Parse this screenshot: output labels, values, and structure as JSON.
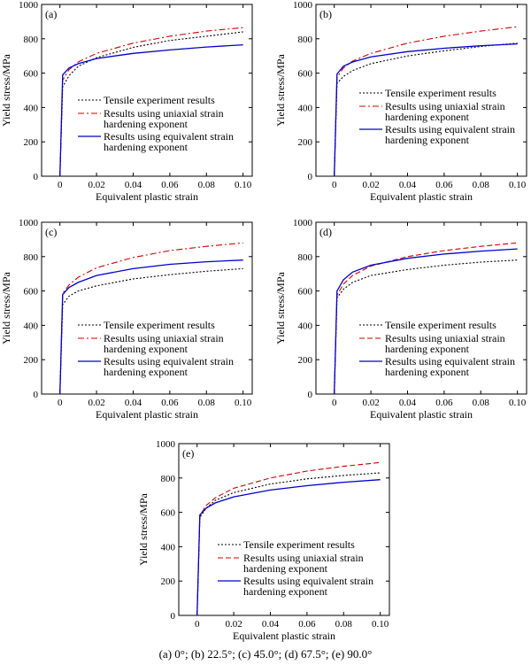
{
  "chart_data": [
    {
      "type": "line",
      "panel_label": "(a)",
      "xlabel": "Equivalent plastic strain",
      "ylabel": "Yield stress/MPa",
      "xlim": [
        -0.01,
        0.105
      ],
      "ylim": [
        0,
        1000
      ],
      "xticks": [
        "0",
        "0.02",
        "0.04",
        "0.06",
        "0.08",
        "0.10"
      ],
      "xtick_values": [
        0,
        0.02,
        0.04,
        0.06,
        0.08,
        0.1
      ],
      "yticks": [
        "0",
        "200",
        "400",
        "600",
        "800",
        "1000"
      ],
      "yticks_values": [
        0,
        200,
        400,
        600,
        800,
        1000
      ],
      "legend_position": "center",
      "series": [
        {
          "name": "Tensile experiment results",
          "color": "#000000",
          "dash": "dotted",
          "x": [
            0,
            0.0015,
            0.005,
            0.01,
            0.02,
            0.04,
            0.06,
            0.08,
            0.1
          ],
          "y": [
            0,
            520,
            585,
            640,
            690,
            750,
            790,
            815,
            840
          ]
        },
        {
          "name": "Results using uniaxial strain hardening exponent",
          "color": "#cc0000",
          "dash": "dashdot",
          "x": [
            0,
            0.0015,
            0.005,
            0.01,
            0.02,
            0.04,
            0.06,
            0.08,
            0.1
          ],
          "y": [
            0,
            560,
            620,
            665,
            715,
            775,
            815,
            845,
            865
          ]
        },
        {
          "name": "Results using equivalent strain hardening exponent",
          "color": "#0000cc",
          "dash": "solid",
          "x": [
            0,
            0.0015,
            0.005,
            0.01,
            0.02,
            0.04,
            0.06,
            0.08,
            0.1
          ],
          "y": [
            0,
            590,
            630,
            655,
            685,
            715,
            735,
            752,
            765
          ]
        }
      ]
    },
    {
      "type": "line",
      "panel_label": "(b)",
      "xlabel": "Equivalent plastic strain",
      "ylabel": "Yield stress/MPa",
      "xlim": [
        -0.01,
        0.105
      ],
      "ylim": [
        0,
        1000
      ],
      "xticks": [
        "0",
        "0.02",
        "0.04",
        "0.06",
        "0.08",
        "0.10"
      ],
      "xtick_values": [
        0,
        0.02,
        0.04,
        0.06,
        0.08,
        0.1
      ],
      "yticks": [
        "0",
        "200",
        "400",
        "600",
        "800",
        "1000"
      ],
      "yticks_values": [
        0,
        200,
        400,
        600,
        800,
        1000
      ],
      "legend_position": "lower right",
      "series": [
        {
          "name": "Tensile experiment results",
          "color": "#000000",
          "dash": "dotted",
          "x": [
            0,
            0.0015,
            0.005,
            0.01,
            0.02,
            0.04,
            0.06,
            0.08,
            0.1
          ],
          "y": [
            0,
            540,
            580,
            615,
            655,
            700,
            730,
            755,
            775
          ]
        },
        {
          "name": "Results using uniaxial strain hardening exponent",
          "color": "#cc0000",
          "dash": "dashdot",
          "x": [
            0,
            0.0015,
            0.005,
            0.01,
            0.02,
            0.04,
            0.06,
            0.08,
            0.1
          ],
          "y": [
            0,
            575,
            630,
            670,
            715,
            775,
            815,
            845,
            870
          ]
        },
        {
          "name": "Results using equivalent strain hardening exponent",
          "color": "#0000cc",
          "dash": "solid",
          "x": [
            0,
            0.0015,
            0.005,
            0.01,
            0.02,
            0.04,
            0.06,
            0.08,
            0.1
          ],
          "y": [
            0,
            595,
            640,
            665,
            695,
            725,
            745,
            760,
            770
          ]
        }
      ]
    },
    {
      "type": "line",
      "panel_label": "(c)",
      "xlabel": "Equivalent plastic strain",
      "ylabel": "Yield stress/MPa",
      "xlim": [
        -0.01,
        0.105
      ],
      "ylim": [
        0,
        1000
      ],
      "xticks": [
        "0",
        "0.02",
        "0.04",
        "0.06",
        "0.08",
        "0.10"
      ],
      "xtick_values": [
        0,
        0.02,
        0.04,
        0.06,
        0.08,
        0.1
      ],
      "yticks": [
        "0",
        "200",
        "400",
        "600",
        "800",
        "1000"
      ],
      "yticks_values": [
        0,
        200,
        400,
        600,
        800,
        1000
      ],
      "legend_position": "lower right",
      "series": [
        {
          "name": "Tensile experiment results",
          "color": "#000000",
          "dash": "dotted",
          "x": [
            0,
            0.0015,
            0.005,
            0.01,
            0.02,
            0.04,
            0.06,
            0.08,
            0.1
          ],
          "y": [
            0,
            520,
            570,
            600,
            630,
            670,
            695,
            715,
            730
          ]
        },
        {
          "name": "Results using uniaxial strain hardening exponent",
          "color": "#cc0000",
          "dash": "dashdot",
          "x": [
            0,
            0.0015,
            0.005,
            0.01,
            0.02,
            0.04,
            0.06,
            0.08,
            0.1
          ],
          "y": [
            0,
            585,
            635,
            680,
            735,
            795,
            835,
            860,
            880
          ]
        },
        {
          "name": "Results using equivalent strain hardening exponent",
          "color": "#0000cc",
          "dash": "solid",
          "x": [
            0,
            0.0015,
            0.005,
            0.01,
            0.02,
            0.04,
            0.06,
            0.08,
            0.1
          ],
          "y": [
            0,
            580,
            620,
            650,
            690,
            730,
            755,
            770,
            780
          ]
        }
      ]
    },
    {
      "type": "line",
      "panel_label": "(d)",
      "xlabel": "Equivalent plastic strain",
      "ylabel": "Yield stress/MPa",
      "xlim": [
        -0.01,
        0.105
      ],
      "ylim": [
        0,
        1000
      ],
      "xticks": [
        "0",
        "0.02",
        "0.04",
        "0.06",
        "0.08",
        "0.10"
      ],
      "xtick_values": [
        0,
        0.02,
        0.04,
        0.06,
        0.08,
        0.1
      ],
      "yticks": [
        "0",
        "200",
        "400",
        "600",
        "800",
        "1000"
      ],
      "yticks_values": [
        0,
        200,
        400,
        600,
        800,
        1000
      ],
      "legend_position": "lower right",
      "series": [
        {
          "name": "Tensile experiment results",
          "color": "#000000",
          "dash": "dotted",
          "x": [
            0,
            0.0015,
            0.005,
            0.01,
            0.02,
            0.04,
            0.06,
            0.08,
            0.1
          ],
          "y": [
            0,
            560,
            610,
            650,
            690,
            725,
            750,
            768,
            780
          ]
        },
        {
          "name": "Results using uniaxial strain hardening exponent",
          "color": "#cc0000",
          "dash": "dashed",
          "x": [
            0,
            0.0015,
            0.005,
            0.01,
            0.02,
            0.04,
            0.06,
            0.08,
            0.1
          ],
          "y": [
            0,
            575,
            640,
            690,
            745,
            800,
            835,
            860,
            880
          ]
        },
        {
          "name": "Results using equivalent strain hardening exponent",
          "color": "#0000cc",
          "dash": "solid",
          "x": [
            0,
            0.0015,
            0.005,
            0.01,
            0.02,
            0.04,
            0.06,
            0.08,
            0.1
          ],
          "y": [
            0,
            600,
            665,
            710,
            750,
            790,
            815,
            832,
            845
          ]
        }
      ]
    },
    {
      "type": "line",
      "panel_label": "(e)",
      "xlabel": "Equivalent plastic strain",
      "ylabel": "Yield stress/MPa",
      "xlim": [
        -0.01,
        0.105
      ],
      "ylim": [
        0,
        1000
      ],
      "xticks": [
        "0",
        "0.02",
        "0.04",
        "0.06",
        "0.08",
        "0.10"
      ],
      "xtick_values": [
        0,
        0.02,
        0.04,
        0.06,
        0.08,
        0.1
      ],
      "yticks": [
        "0",
        "200",
        "400",
        "600",
        "800",
        "1000"
      ],
      "yticks_values": [
        0,
        200,
        400,
        600,
        800,
        1000
      ],
      "legend_position": "center right",
      "series": [
        {
          "name": "Tensile experiment results",
          "color": "#000000",
          "dash": "dotted",
          "x": [
            0,
            0.0015,
            0.005,
            0.01,
            0.02,
            0.04,
            0.06,
            0.08,
            0.1
          ],
          "y": [
            0,
            570,
            625,
            670,
            715,
            765,
            795,
            815,
            830
          ]
        },
        {
          "name": "Results using uniaxial strain hardening exponent",
          "color": "#cc0000",
          "dash": "dashed",
          "x": [
            0,
            0.0015,
            0.005,
            0.01,
            0.02,
            0.04,
            0.06,
            0.08,
            0.1
          ],
          "y": [
            0,
            580,
            640,
            685,
            740,
            800,
            840,
            868,
            890
          ]
        },
        {
          "name": "Results using equivalent strain hardening exponent",
          "color": "#0000cc",
          "dash": "solid",
          "x": [
            0,
            0.0015,
            0.005,
            0.01,
            0.02,
            0.04,
            0.06,
            0.08,
            0.1
          ],
          "y": [
            0,
            585,
            625,
            655,
            690,
            730,
            755,
            775,
            790
          ]
        }
      ]
    }
  ],
  "legend": {
    "experiment": "Tensile experiment results",
    "uniaxial_line1": "Results using uniaxial strain",
    "uniaxial_line2": "hardening exponent",
    "equivalent_line1": "Results using equivalent strain",
    "equivalent_line2": "hardening exponent"
  },
  "caption": "(a) 0°; (b) 22.5°; (c) 45.0°; (d) 67.5°; (e) 90.0°"
}
